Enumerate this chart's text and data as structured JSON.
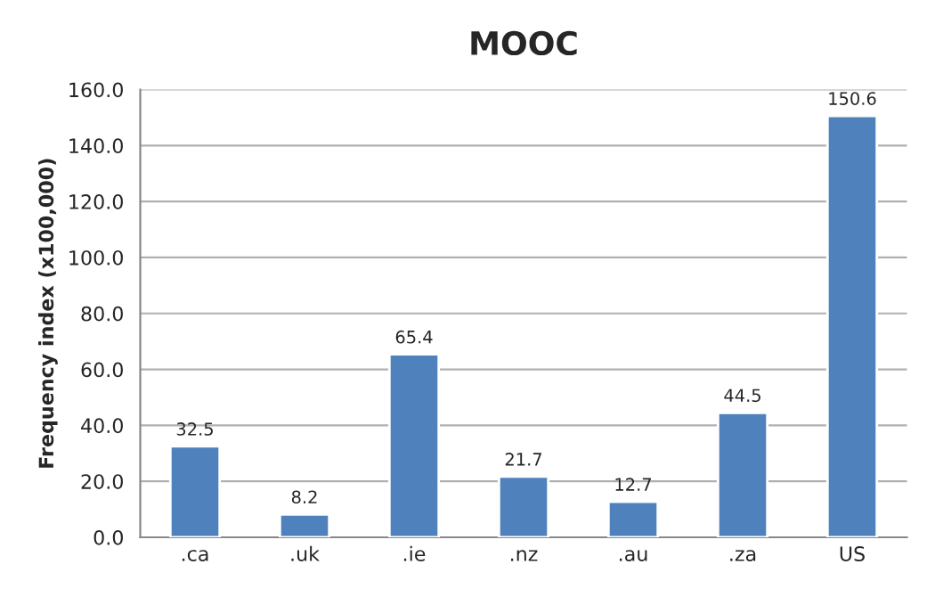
{
  "chart_data": {
    "type": "bar",
    "title": "MOOC",
    "ylabel": "Frequency index (x100,000)",
    "categories": [
      ".ca",
      ".uk",
      ".ie",
      ".nz",
      ".au",
      ".za",
      "US"
    ],
    "values": [
      32.5,
      8.2,
      65.4,
      21.7,
      12.7,
      44.5,
      150.6
    ],
    "color": "#4f81bd",
    "data_labels": true,
    "grid": "y",
    "ylim": [
      0,
      160
    ],
    "yticks": [
      {
        "value": 0,
        "label": "0.0"
      },
      {
        "value": 20,
        "label": "20.0"
      },
      {
        "value": 40,
        "label": "40.0"
      },
      {
        "value": 60,
        "label": "60.0"
      },
      {
        "value": 80,
        "label": "80.0"
      },
      {
        "value": 100,
        "label": "100.0"
      },
      {
        "value": 120,
        "label": "120.0"
      },
      {
        "value": 140,
        "label": "140.0"
      },
      {
        "value": 160,
        "label": "160.0"
      }
    ]
  }
}
